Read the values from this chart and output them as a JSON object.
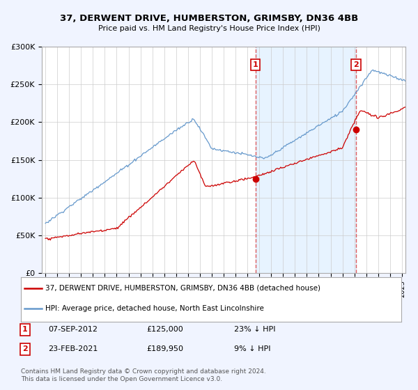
{
  "title": "37, DERWENT DRIVE, HUMBERSTON, GRIMSBY, DN36 4BB",
  "subtitle": "Price paid vs. HM Land Registry's House Price Index (HPI)",
  "ylim": [
    0,
    300000
  ],
  "yticks": [
    0,
    50000,
    100000,
    150000,
    200000,
    250000,
    300000
  ],
  "ytick_labels": [
    "£0",
    "£50K",
    "£100K",
    "£150K",
    "£200K",
    "£250K",
    "£300K"
  ],
  "transaction1": {
    "date_num": 2012.68,
    "price": 125000,
    "label": "1",
    "date_str": "07-SEP-2012",
    "pct": "23% ↓ HPI"
  },
  "transaction2": {
    "date_num": 2021.14,
    "price": 189950,
    "label": "2",
    "date_str": "23-FEB-2021",
    "pct": "9% ↓ HPI"
  },
  "legend_label_red": "37, DERWENT DRIVE, HUMBERSTON, GRIMSBY, DN36 4BB (detached house)",
  "legend_label_blue": "HPI: Average price, detached house, North East Lincolnshire",
  "footer": "Contains HM Land Registry data © Crown copyright and database right 2024.\nThis data is licensed under the Open Government Licence v3.0.",
  "background_color": "#f0f4ff",
  "plot_bg": "#ffffff",
  "red_color": "#cc0000",
  "blue_color": "#6699cc",
  "vline_color": "#dd4444",
  "shade_color": "#ddeeff",
  "xtick_start": 1995,
  "xtick_end": 2025,
  "xlim_left": 1994.7,
  "xlim_right": 2025.3
}
